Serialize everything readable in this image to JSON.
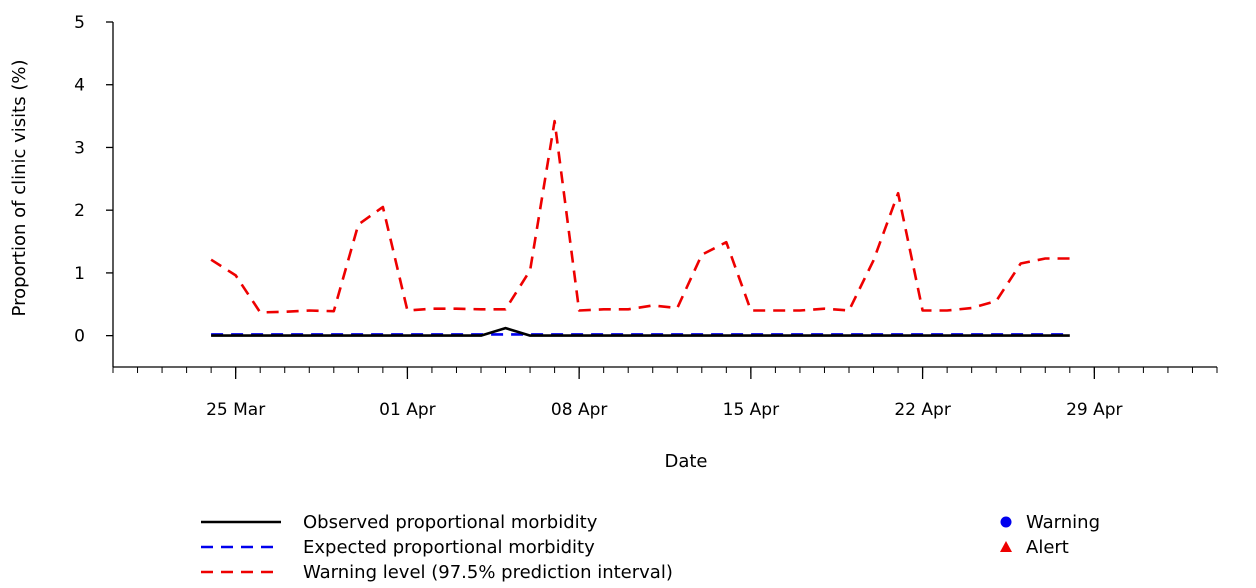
{
  "chart_data": {
    "type": "line",
    "title": "",
    "xlabel": "Date",
    "ylabel": "Proportion of clinic visits (%)",
    "x_start": "2018-03-24",
    "x_range": [
      "2018-03-20",
      "2018-05-04"
    ],
    "ylim": [
      -0.5,
      5.0
    ],
    "y_ticks": [
      0,
      1,
      2,
      3,
      4,
      5
    ],
    "x_ticks": [
      {
        "date": "2018-03-25",
        "label": "25 Mar"
      },
      {
        "date": "2018-04-01",
        "label": "01 Apr"
      },
      {
        "date": "2018-04-08",
        "label": "08 Apr"
      },
      {
        "date": "2018-04-15",
        "label": "15 Apr"
      },
      {
        "date": "2018-04-22",
        "label": "22 Apr"
      },
      {
        "date": "2018-04-29",
        "label": "29 Apr"
      }
    ],
    "minor_tick_dates_from": "2018-03-20",
    "minor_tick_dates_to": "2018-05-04",
    "grid": false,
    "series": [
      {
        "name": "Observed proportional morbidity",
        "color": "#000000",
        "style": "solid",
        "values": [
          0,
          0,
          0,
          0,
          0,
          0,
          0,
          0,
          0,
          0,
          0,
          0,
          0.12,
          0,
          0,
          0,
          0,
          0,
          0,
          0,
          0,
          0,
          0,
          0,
          0,
          0,
          0,
          0,
          0,
          0,
          0,
          0,
          0,
          0,
          0,
          0
        ]
      },
      {
        "name": "Expected proportional morbidity",
        "color": "#0000ee",
        "style": "dashed",
        "values": [
          0.02,
          0.02,
          0.02,
          0.02,
          0.02,
          0.02,
          0.02,
          0.02,
          0.02,
          0.02,
          0.02,
          0.02,
          0.02,
          0.02,
          0.02,
          0.02,
          0.02,
          0.02,
          0.02,
          0.02,
          0.02,
          0.02,
          0.02,
          0.02,
          0.02,
          0.02,
          0.02,
          0.02,
          0.02,
          0.02,
          0.02,
          0.02,
          0.02,
          0.02,
          0.02,
          0.02
        ]
      },
      {
        "name": "Warning level (97.5% prediction interval)",
        "color": "#ee0000",
        "style": "dashed",
        "values": [
          1.21,
          0.96,
          0.37,
          0.38,
          0.4,
          0.39,
          1.77,
          2.05,
          0.4,
          0.43,
          0.43,
          0.42,
          0.42,
          1.04,
          3.42,
          0.4,
          0.42,
          0.42,
          0.48,
          0.44,
          1.29,
          1.49,
          0.4,
          0.4,
          0.4,
          0.43,
          0.4,
          1.2,
          2.27,
          0.4,
          0.4,
          0.44,
          0.55,
          1.15,
          1.23,
          1.23
        ]
      }
    ],
    "legend": {
      "placement": "bottom",
      "markers": [
        {
          "label": "Warning",
          "shape": "circle",
          "color": "#0000ee"
        },
        {
          "label": "Alert",
          "shape": "triangle",
          "color": "#ee0000"
        }
      ]
    }
  }
}
